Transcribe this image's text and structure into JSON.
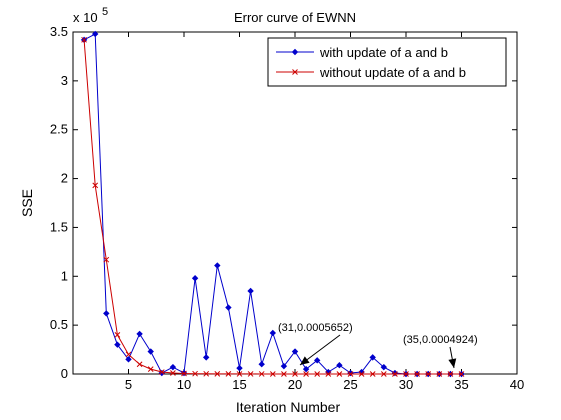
{
  "chart_data": {
    "type": "line",
    "title": "Error curve of EWNN",
    "xlabel": "Iteration Number",
    "ylabel": "SSE",
    "xlim": [
      0,
      40
    ],
    "ylim": [
      0,
      350000
    ],
    "x_ticks": [
      "5",
      "10",
      "15",
      "20",
      "25",
      "30",
      "35",
      "40"
    ],
    "y_ticks": [
      "0",
      "0.5",
      "1",
      "1.5",
      "2",
      "2.5",
      "3",
      "3.5"
    ],
    "y_exponent_base": "x 10",
    "y_exponent_power": "5",
    "grid": false,
    "legend_position": "top-right",
    "series": [
      {
        "name": "with update of a and b",
        "color": "#0000cc",
        "marker": "diamond",
        "x": [
          1,
          2,
          3,
          4,
          5,
          6,
          7,
          8,
          9,
          10,
          11,
          12,
          13,
          14,
          15,
          16,
          17,
          18,
          19,
          20,
          21,
          22,
          23,
          24,
          25,
          26,
          27,
          28,
          29,
          30,
          31,
          32,
          33,
          34,
          35
        ],
        "y": [
          342000,
          348000,
          62000,
          30000,
          15000,
          41000,
          23000,
          1000,
          7000,
          1000,
          98000,
          17000,
          111000,
          68000,
          6000,
          85000,
          10000,
          42000,
          8000,
          23000,
          5000,
          14000,
          2000,
          9000,
          1000,
          2000,
          17000,
          7000,
          1000,
          0,
          0,
          0,
          0,
          0,
          0
        ]
      },
      {
        "name": "without update of a and b",
        "color": "#cc0000",
        "marker": "x",
        "x": [
          1,
          2,
          3,
          4,
          5,
          6,
          7,
          8,
          9,
          10,
          11,
          12,
          13,
          14,
          15,
          16,
          17,
          18,
          19,
          20,
          21,
          22,
          23,
          24,
          25,
          26,
          27,
          28,
          29,
          30,
          31,
          32,
          33,
          34,
          35
        ],
        "y": [
          342000,
          193000,
          117000,
          40000,
          20000,
          10000,
          5000,
          2000,
          1000,
          500,
          300,
          200,
          150,
          100,
          80,
          60,
          50,
          40,
          30,
          25,
          20,
          15,
          10,
          8,
          6,
          5,
          4,
          3,
          2,
          1,
          0,
          0,
          0,
          0,
          0
        ]
      }
    ],
    "annotations": [
      {
        "text": "(31,0.0005652)",
        "x": 31,
        "y": 0.0005652
      },
      {
        "text": "(35,0.0004924)",
        "x": 35,
        "y": 0.0004924
      }
    ]
  }
}
